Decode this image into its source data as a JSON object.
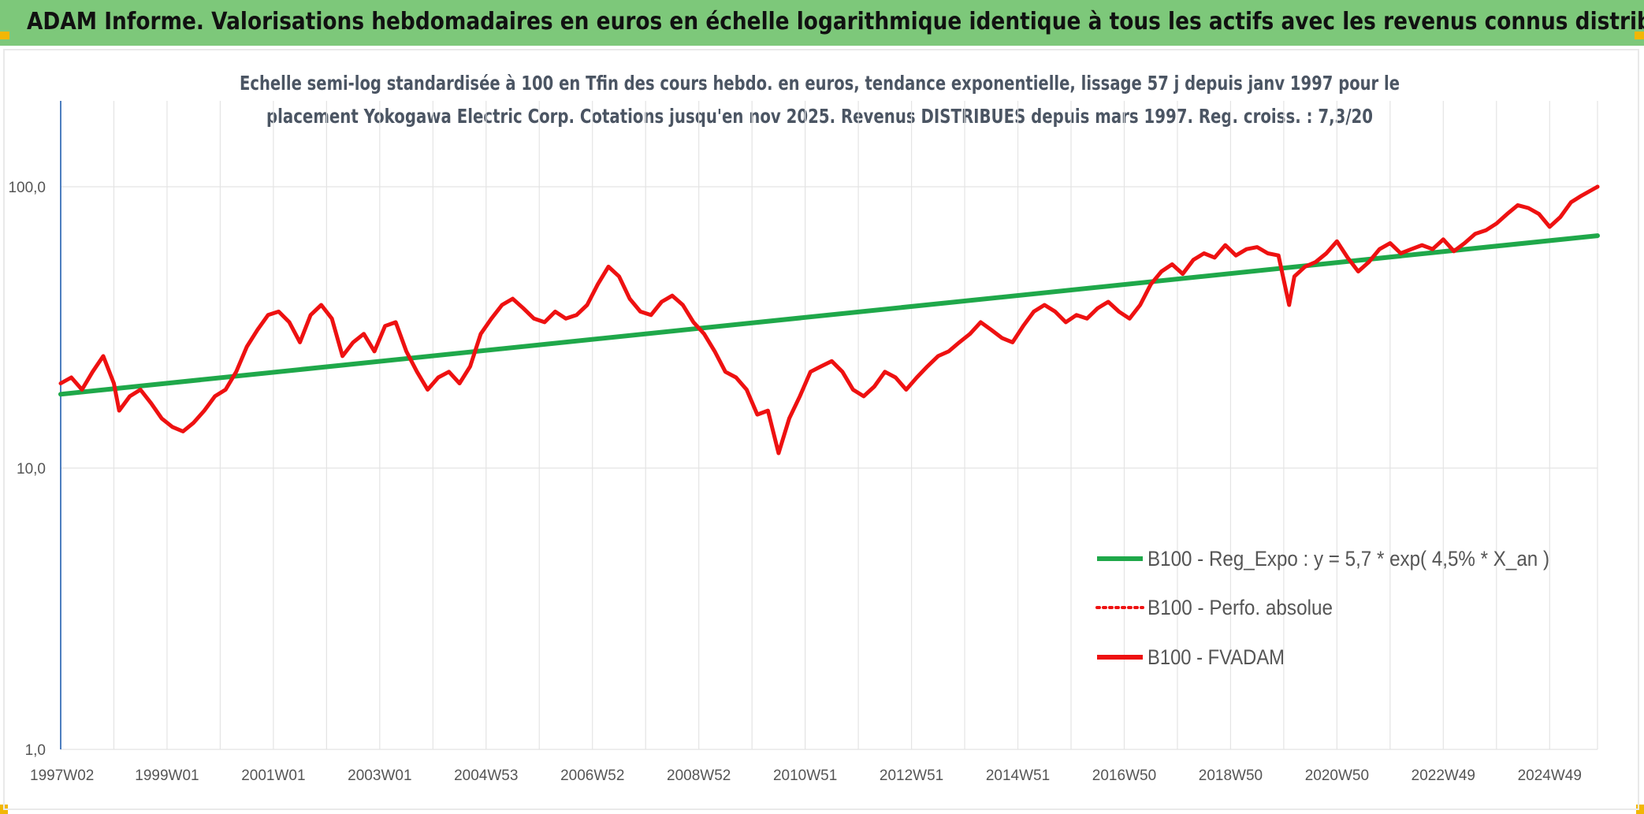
{
  "header": {
    "title": "ADAM Informe. Valorisations hebdomadaires en euros en échelle logarithmique identique à tous les actifs avec les revenus connus distribués"
  },
  "colors": {
    "header_bg": "#7dc87a",
    "corner_accent": "#f2b705",
    "regression": "#1fa84a",
    "performance": "#ee1111",
    "fvadam": "#ee1111"
  },
  "chart_data": {
    "type": "line",
    "title_lines": [
      "Echelle semi-log standardisée à 100 en Tfin des cours hebdo. en euros, tendance exponentielle, lissage 57 j depuis janv 1997 pour le",
      "placement Yokogawa Electric Corp. Cotations jusqu'en nov 2025. Revenus DISTRIBUES depuis mars 1997. Reg. croiss. : 7,3/20"
    ],
    "y_scale": "log",
    "ylim": [
      1,
      180
    ],
    "xlim": [
      1997.0,
      2025.9
    ],
    "y_ticks": [
      {
        "value": 1,
        "label": "1,0"
      },
      {
        "value": 10,
        "label": "10,0"
      },
      {
        "value": 100,
        "label": "100,0"
      }
    ],
    "x_ticks": [
      {
        "x": 1997.0,
        "label": "1997W02"
      },
      {
        "x": 1999.0,
        "label": "1999W01"
      },
      {
        "x": 2001.0,
        "label": "2001W01"
      },
      {
        "x": 2003.0,
        "label": "2003W01"
      },
      {
        "x": 2005.0,
        "label": "2004W53"
      },
      {
        "x": 2007.0,
        "label": "2006W52"
      },
      {
        "x": 2009.0,
        "label": "2008W52"
      },
      {
        "x": 2011.0,
        "label": "2010W51"
      },
      {
        "x": 2013.0,
        "label": "2012W51"
      },
      {
        "x": 2015.0,
        "label": "2014W51"
      },
      {
        "x": 2017.0,
        "label": "2016W50"
      },
      {
        "x": 2019.0,
        "label": "2018W50"
      },
      {
        "x": 2021.0,
        "label": "2020W50"
      },
      {
        "x": 2023.0,
        "label": "2022W49"
      },
      {
        "x": 2025.0,
        "label": "2024W49"
      }
    ],
    "grid": "vertical and horizontal",
    "legend_position": "right",
    "series": [
      {
        "name": "B100 - Reg_Expo : y = 5,7 * exp( 4,5% *  X_an )",
        "style": "solid-thick",
        "color": "#1fa84a",
        "x": [
          1997.0,
          2025.9
        ],
        "y": [
          18.3,
          67.0
        ]
      },
      {
        "name": "B100 - Perfo. absolue",
        "style": "dotted",
        "color": "#ee1111",
        "x": [
          2025.9
        ],
        "y": [
          100.0
        ]
      },
      {
        "name": "B100 - FVADAM",
        "style": "solid-thick",
        "color": "#ee1111",
        "x": [
          1997.0,
          1997.2,
          1997.4,
          1997.6,
          1997.8,
          1998.0,
          1998.1,
          1998.3,
          1998.5,
          1998.7,
          1998.9,
          1999.1,
          1999.3,
          1999.5,
          1999.7,
          1999.9,
          2000.1,
          2000.3,
          2000.5,
          2000.7,
          2000.9,
          2001.1,
          2001.3,
          2001.5,
          2001.7,
          2001.9,
          2002.1,
          2002.3,
          2002.5,
          2002.7,
          2002.9,
          2003.1,
          2003.3,
          2003.5,
          2003.7,
          2003.9,
          2004.1,
          2004.3,
          2004.5,
          2004.7,
          2004.9,
          2005.1,
          2005.3,
          2005.5,
          2005.7,
          2005.9,
          2006.1,
          2006.3,
          2006.5,
          2006.7,
          2006.9,
          2007.1,
          2007.3,
          2007.5,
          2007.7,
          2007.9,
          2008.1,
          2008.3,
          2008.5,
          2008.7,
          2008.9,
          2009.1,
          2009.3,
          2009.5,
          2009.7,
          2009.9,
          2010.1,
          2010.3,
          2010.5,
          2010.7,
          2010.9,
          2011.1,
          2011.3,
          2011.5,
          2011.7,
          2011.9,
          2012.1,
          2012.3,
          2012.5,
          2012.7,
          2012.9,
          2013.1,
          2013.3,
          2013.5,
          2013.7,
          2013.9,
          2014.1,
          2014.3,
          2014.5,
          2014.7,
          2014.9,
          2015.1,
          2015.3,
          2015.5,
          2015.7,
          2015.9,
          2016.1,
          2016.3,
          2016.5,
          2016.7,
          2016.9,
          2017.1,
          2017.3,
          2017.5,
          2017.7,
          2017.9,
          2018.1,
          2018.3,
          2018.5,
          2018.7,
          2018.9,
          2019.1,
          2019.3,
          2019.5,
          2019.7,
          2019.9,
          2020.1,
          2020.2,
          2020.4,
          2020.6,
          2020.8,
          2021.0,
          2021.2,
          2021.4,
          2021.6,
          2021.8,
          2022.0,
          2022.2,
          2022.4,
          2022.6,
          2022.8,
          2023.0,
          2023.2,
          2023.4,
          2023.6,
          2023.8,
          2024.0,
          2024.2,
          2024.4,
          2024.6,
          2024.8,
          2025.0,
          2025.2,
          2025.4,
          2025.6,
          2025.9
        ],
        "y": [
          20.0,
          21.0,
          19.0,
          22.0,
          25.0,
          20.0,
          16.0,
          18.0,
          19.0,
          17.0,
          15.0,
          14.0,
          13.5,
          14.5,
          16.0,
          18.0,
          19.0,
          22.0,
          27.0,
          31.0,
          35.0,
          36.0,
          33.0,
          28.0,
          35.0,
          38.0,
          34.0,
          25.0,
          28.0,
          30.0,
          26.0,
          32.0,
          33.0,
          26.0,
          22.0,
          19.0,
          21.0,
          22.0,
          20.0,
          23.0,
          30.0,
          34.0,
          38.0,
          40.0,
          37.0,
          34.0,
          33.0,
          36.0,
          34.0,
          35.0,
          38.0,
          45.0,
          52.0,
          48.0,
          40.0,
          36.0,
          35.0,
          39.0,
          41.0,
          38.0,
          33.0,
          30.0,
          26.0,
          22.0,
          21.0,
          19.0,
          15.5,
          16.0,
          11.3,
          15.0,
          18.0,
          22.0,
          23.0,
          24.0,
          22.0,
          19.0,
          18.0,
          19.5,
          22.0,
          21.0,
          19.0,
          21.0,
          23.0,
          25.0,
          26.0,
          28.0,
          30.0,
          33.0,
          31.0,
          29.0,
          28.0,
          32.0,
          36.0,
          38.0,
          36.0,
          33.0,
          35.0,
          34.0,
          37.0,
          39.0,
          36.0,
          34.0,
          38.0,
          45.0,
          50.0,
          53.0,
          49.0,
          55.0,
          58.0,
          56.0,
          62.0,
          57.0,
          60.0,
          61.0,
          58.0,
          57.0,
          38.0,
          48.0,
          52.0,
          54.0,
          58.0,
          64.0,
          56.0,
          50.0,
          54.0,
          60.0,
          63.0,
          58.0,
          60.0,
          62.0,
          60.0,
          65.0,
          59.0,
          63.0,
          68.0,
          70.0,
          74.0,
          80.0,
          86.0,
          84.0,
          80.0,
          72.0,
          78.0,
          88.0,
          93.0,
          100.0
        ]
      }
    ]
  }
}
